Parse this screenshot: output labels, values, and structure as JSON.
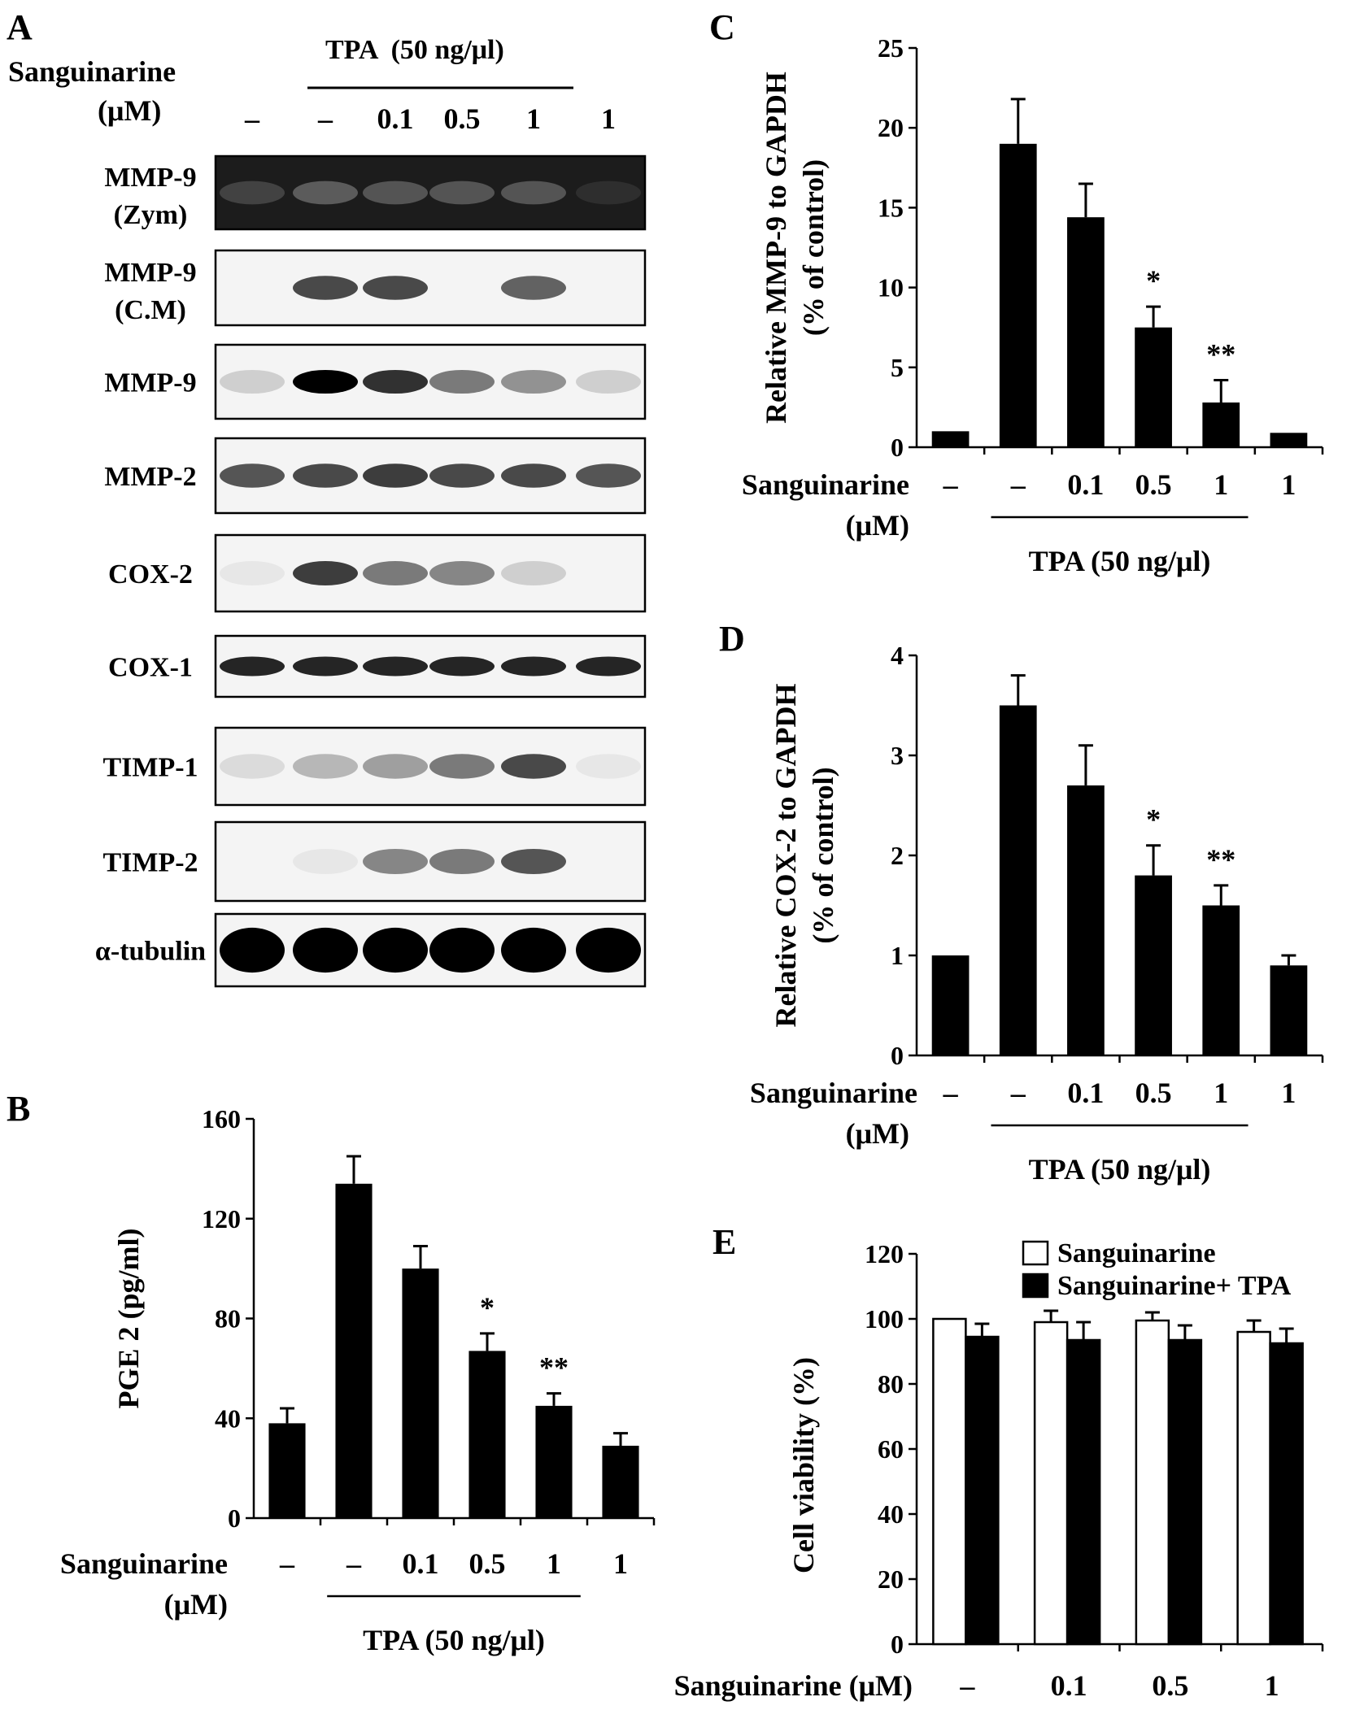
{
  "figure": {
    "panels": {
      "A": {
        "letter": "A",
        "condition_header": "Sanguinarine",
        "condition_unit": "(μM)",
        "tpa_label": "TPA  (50 ng/μl)",
        "doses": [
          "–",
          "–",
          "0.1",
          "0.5",
          "1",
          "1"
        ],
        "blots": [
          {
            "label": [
              "MMP-9",
              "(Zym)"
            ],
            "style": "dark",
            "intensity": [
              0.3,
              0.5,
              0.45,
              0.45,
              0.45,
              0.15
            ]
          },
          {
            "label": [
              "MMP-9",
              "(C.M)"
            ],
            "style": "light",
            "intensity": [
              0.0,
              0.7,
              0.7,
              0.0,
              0.6,
              0.0
            ]
          },
          {
            "label": [
              "MMP-9"
            ],
            "style": "light",
            "intensity": [
              0.15,
              1.0,
              0.8,
              0.5,
              0.4,
              0.15
            ]
          },
          {
            "label": [
              "MMP-2"
            ],
            "style": "light",
            "intensity": [
              0.65,
              0.7,
              0.75,
              0.7,
              0.7,
              0.65
            ]
          },
          {
            "label": [
              "COX-2"
            ],
            "style": "light",
            "intensity": [
              0.05,
              0.75,
              0.5,
              0.45,
              0.15,
              0.0
            ]
          },
          {
            "label": [
              "COX-1"
            ],
            "style": "light",
            "intensity": [
              0.85,
              0.85,
              0.85,
              0.85,
              0.85,
              0.85
            ]
          },
          {
            "label": [
              "TIMP-1"
            ],
            "style": "light",
            "intensity": [
              0.1,
              0.25,
              0.35,
              0.5,
              0.7,
              0.05
            ]
          },
          {
            "label": [
              "TIMP-2"
            ],
            "style": "light",
            "intensity": [
              0.0,
              0.05,
              0.45,
              0.5,
              0.65,
              0.0
            ]
          },
          {
            "label": [
              "α-tubulin"
            ],
            "style": "light",
            "intensity": [
              1.0,
              1.0,
              1.0,
              1.0,
              1.0,
              1.0
            ]
          }
        ]
      },
      "B": {
        "letter": "B"
      },
      "C": {
        "letter": "C"
      },
      "D": {
        "letter": "D"
      },
      "E": {
        "letter": "E"
      }
    }
  },
  "chart_data": [
    {
      "panel": "B",
      "type": "bar",
      "categories": [
        "–",
        "–",
        "0.1",
        "0.5",
        "1",
        "1"
      ],
      "values": [
        38,
        134,
        100,
        67,
        45,
        29
      ],
      "errors": [
        6,
        11,
        9,
        7,
        5,
        5
      ],
      "significance": [
        "",
        "",
        "",
        "*",
        "**",
        ""
      ],
      "ylabel": "PGE 2 (pg/ml)",
      "ylim": [
        0,
        160
      ],
      "yticks": [
        0,
        40,
        80,
        120,
        160
      ],
      "xlabel": "Sanguinarine",
      "xlabel_unit": "(μM)",
      "tpa_label": "TPA  (50 ng/μl)",
      "tpa_span": [
        1,
        4
      ]
    },
    {
      "panel": "C",
      "type": "bar",
      "categories": [
        "–",
        "–",
        "0.1",
        "0.5",
        "1",
        "1"
      ],
      "values": [
        1.0,
        19.0,
        14.4,
        7.5,
        2.8,
        0.9
      ],
      "errors": [
        0,
        2.8,
        2.1,
        1.3,
        1.4,
        0
      ],
      "significance": [
        "",
        "",
        "",
        "*",
        "**",
        ""
      ],
      "ylabel": "Relative MMP-9 to GAPDH",
      "ylabel2": "(%  of control)",
      "ylim": [
        0,
        25
      ],
      "yticks": [
        0,
        5,
        10,
        15,
        20,
        25
      ],
      "xlabel": "Sanguinarine",
      "xlabel_unit": "(μM)",
      "tpa_label": "TPA  (50 ng/μl)",
      "tpa_span": [
        1,
        4
      ]
    },
    {
      "panel": "D",
      "type": "bar",
      "categories": [
        "–",
        "–",
        "0.1",
        "0.5",
        "1",
        "1"
      ],
      "values": [
        1.0,
        3.5,
        2.7,
        1.8,
        1.5,
        0.9
      ],
      "errors": [
        0,
        0.3,
        0.4,
        0.3,
        0.2,
        0.1
      ],
      "significance": [
        "",
        "",
        "",
        "*",
        "**",
        ""
      ],
      "ylabel": "Relative COX-2 to GAPDH",
      "ylabel2": "(%  of control)",
      "ylim": [
        0,
        4
      ],
      "yticks": [
        0,
        1,
        2,
        3,
        4
      ],
      "xlabel": "Sanguinarine",
      "xlabel_unit": "(μM)",
      "tpa_label": "TPA  (50 ng/μl)",
      "tpa_span": [
        1,
        4
      ]
    },
    {
      "panel": "E",
      "type": "bar",
      "categories": [
        "–",
        "0.1",
        "0.5",
        "1"
      ],
      "series": [
        {
          "name": "Sanguinarine",
          "color": "#ffffff",
          "values": [
            100,
            99,
            99.5,
            96
          ],
          "errors": [
            0,
            3.5,
            2.5,
            3.5
          ]
        },
        {
          "name": "Sanguinarine+ TPA",
          "color": "#000000",
          "values": [
            94.5,
            93.5,
            93.5,
            92.5
          ],
          "errors": [
            4,
            5.5,
            4.5,
            4.5
          ]
        }
      ],
      "ylabel": "Cell viability (%)",
      "ylim": [
        0,
        120
      ],
      "yticks": [
        0,
        20,
        40,
        60,
        80,
        100,
        120
      ],
      "xlabel": "Sanguinarine (μM)",
      "legend": "top-right"
    }
  ]
}
